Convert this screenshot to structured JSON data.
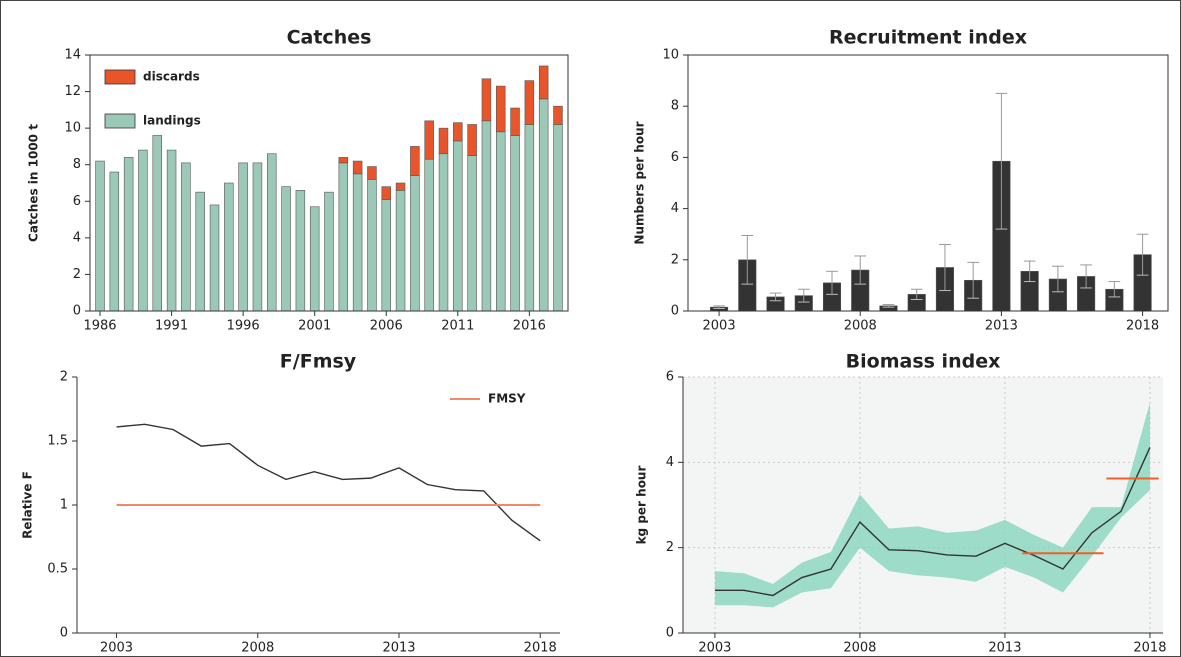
{
  "chart_data": [
    {
      "type": "bar",
      "title": "Catches",
      "y_label": "Catches in 1000 t",
      "x": [
        1986,
        1987,
        1988,
        1989,
        1990,
        1991,
        1992,
        1993,
        1994,
        1995,
        1996,
        1997,
        1998,
        1999,
        2000,
        2001,
        2002,
        2003,
        2004,
        2005,
        2006,
        2007,
        2008,
        2009,
        2010,
        2011,
        2012,
        2013,
        2014,
        2015,
        2016,
        2017,
        2018
      ],
      "series": [
        {
          "name": "landings",
          "color": "#9cc8b8",
          "values": [
            8.2,
            7.6,
            8.4,
            8.8,
            9.6,
            8.8,
            8.1,
            6.5,
            5.8,
            7.0,
            8.1,
            8.1,
            8.6,
            6.8,
            6.6,
            5.7,
            6.5,
            8.1,
            7.5,
            7.2,
            6.1,
            6.6,
            7.4,
            8.3,
            8.6,
            9.3,
            8.5,
            10.4,
            9.8,
            9.6,
            10.2,
            11.6,
            10.2
          ]
        },
        {
          "name": "discards",
          "color": "#e8552a",
          "values": [
            null,
            null,
            null,
            null,
            null,
            null,
            null,
            null,
            null,
            null,
            null,
            null,
            null,
            null,
            null,
            null,
            null,
            0.3,
            0.7,
            0.7,
            0.7,
            0.4,
            1.6,
            2.1,
            1.4,
            1.0,
            1.7,
            2.3,
            2.5,
            1.5,
            2.4,
            1.8,
            1.0
          ]
        }
      ],
      "xlim": [
        1985.3,
        2018.7
      ],
      "xticks": [
        1986,
        1991,
        1996,
        2001,
        2006,
        2011,
        2016
      ],
      "ylim": [
        0,
        14
      ],
      "yticks": [
        0,
        2,
        4,
        6,
        8,
        10,
        12,
        14
      ],
      "legend": "upper left",
      "grid": false
    },
    {
      "type": "bar",
      "title": "Recruitment index",
      "y_label": "Numbers per hour",
      "x": [
        2003,
        2004,
        2005,
        2006,
        2007,
        2008,
        2009,
        2010,
        2011,
        2012,
        2013,
        2014,
        2015,
        2016,
        2017,
        2018
      ],
      "series": [
        {
          "color": "#333333",
          "values": [
            0.15,
            2.0,
            0.55,
            0.6,
            1.1,
            1.6,
            0.2,
            0.65,
            1.7,
            1.2,
            5.85,
            1.55,
            1.25,
            1.35,
            0.85,
            2.2
          ],
          "errors": [
            0.05,
            0.95,
            0.15,
            0.25,
            0.45,
            0.55,
            0.05,
            0.2,
            0.9,
            0.7,
            2.65,
            0.4,
            0.5,
            0.45,
            0.3,
            0.8
          ]
        }
      ],
      "xlim": [
        2001.9,
        2018.9
      ],
      "xticks": [
        2003,
        2008,
        2013,
        2018
      ],
      "ylim": [
        0,
        10
      ],
      "yticks": [
        0,
        2,
        4,
        6,
        8,
        10
      ],
      "grid": false
    },
    {
      "type": "line",
      "title": "F/Fmsy",
      "y_label": "Relative F",
      "x": [
        2003,
        2004,
        2005,
        2006,
        2007,
        2008,
        2009,
        2010,
        2011,
        2012,
        2013,
        2014,
        2015,
        2016,
        2017,
        2018
      ],
      "series": [
        {
          "color": "#333333",
          "values": [
            1.61,
            1.63,
            1.59,
            1.46,
            1.48,
            1.31,
            1.2,
            1.26,
            1.2,
            1.21,
            1.29,
            1.16,
            1.12,
            1.11,
            0.88,
            0.72
          ]
        }
      ],
      "reference_lines": [
        {
          "name": "FMSY",
          "value": 1,
          "x": [
            2003,
            2018
          ],
          "color": "#f4876a"
        }
      ],
      "xlim": [
        2001.6,
        2018.7
      ],
      "xticks": [
        2003,
        2008,
        2013,
        2018
      ],
      "ylim": [
        0,
        2
      ],
      "yticks": [
        0,
        0.5,
        1,
        1.5,
        2
      ],
      "legend": "upper right",
      "grid": false
    },
    {
      "type": "line",
      "title": "Biomass index",
      "y_label": "kg per hour",
      "x": [
        2003,
        2004,
        2005,
        2006,
        2007,
        2008,
        2009,
        2010,
        2011,
        2012,
        2013,
        2014,
        2015,
        2016,
        2017,
        2018
      ],
      "series": [
        {
          "color": "#333333",
          "band_color": "#7fd3b9",
          "values": [
            1.0,
            1.0,
            0.88,
            1.3,
            1.5,
            2.6,
            1.95,
            1.93,
            1.83,
            1.8,
            2.1,
            1.82,
            1.5,
            2.35,
            2.85,
            4.35
          ],
          "upper": [
            1.45,
            1.4,
            1.15,
            1.65,
            1.9,
            3.25,
            2.45,
            2.5,
            2.35,
            2.4,
            2.65,
            2.3,
            2.0,
            2.95,
            2.95,
            5.4
          ],
          "lower": [
            0.65,
            0.65,
            0.6,
            0.95,
            1.05,
            2.0,
            1.45,
            1.35,
            1.3,
            1.2,
            1.55,
            1.3,
            0.95,
            1.8,
            2.7,
            3.35
          ]
        }
      ],
      "reference_lines": [
        {
          "value": 1.87,
          "x": [
            2013.6,
            2016.4
          ],
          "color": "#f0602a"
        },
        {
          "value": 3.62,
          "x": [
            2016.5,
            2018.3
          ],
          "color": "#f0602a"
        }
      ],
      "xlim": [
        2001.9,
        2018.45
      ],
      "xticks": [
        2003,
        2008,
        2013,
        2018
      ],
      "ylim": [
        0,
        6
      ],
      "yticks": [
        0,
        2,
        4,
        6
      ],
      "grid": true
    }
  ]
}
